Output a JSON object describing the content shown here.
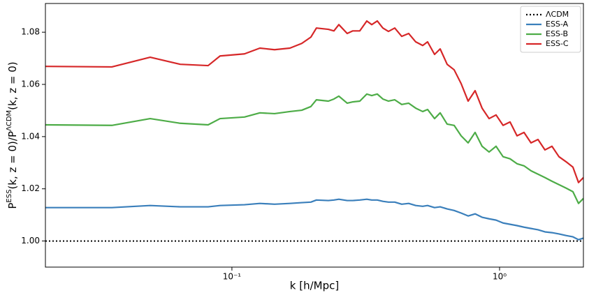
{
  "chart_data": {
    "type": "line",
    "xlabel": "k [h/Mpc]",
    "ylabel": [
      "P",
      "ESS",
      "(k, z = 0)/P",
      "ΛCDM",
      "(k, z = 0)"
    ],
    "xscale": "log",
    "xlim": [
      0.0201,
      2.0573
    ],
    "ylim": [
      0.99,
      1.091
    ],
    "xticks": [
      {
        "value": 0.1,
        "label": "10⁻¹"
      },
      {
        "value": 1,
        "label": "10⁰"
      }
    ],
    "yticks": [
      {
        "value": 1.0,
        "label": "1.00"
      },
      {
        "value": 1.02,
        "label": "1.02"
      },
      {
        "value": 1.04,
        "label": "1.04"
      },
      {
        "value": 1.06,
        "label": "1.06"
      },
      {
        "value": 1.08,
        "label": "1.08"
      }
    ],
    "legend": "upper right",
    "x": [
      0.0201,
      0.0356,
      0.0495,
      0.0641,
      0.0815,
      0.0903,
      0.1114,
      0.1272,
      0.1443,
      0.1647,
      0.1824,
      0.1972,
      0.2069,
      0.2293,
      0.2405,
      0.2509,
      0.2696,
      0.2829,
      0.3005,
      0.3191,
      0.333,
      0.3493,
      0.3664,
      0.3845,
      0.4059,
      0.431,
      0.4576,
      0.4861,
      0.5162,
      0.5383,
      0.5717,
      0.5999,
      0.637,
      0.6765,
      0.7185,
      0.763,
      0.8103,
      0.8604,
      0.9138,
      0.9703,
      1.0306,
      1.0944,
      1.1622,
      1.2341,
      1.3106,
      1.3918,
      1.478,
      1.5696,
      1.6669,
      1.7701,
      1.8797,
      1.9724,
      2.0573
    ],
    "series": [
      {
        "name": "ΛCDM",
        "color": "#000000",
        "dash": "dotted",
        "values": [
          1,
          1,
          1,
          1,
          1,
          1,
          1,
          1,
          1,
          1,
          1,
          1,
          1,
          1,
          1,
          1,
          1,
          1,
          1,
          1,
          1,
          1,
          1,
          1,
          1,
          1,
          1,
          1,
          1,
          1,
          1,
          1,
          1,
          1,
          1,
          1,
          1,
          1,
          1,
          1,
          1,
          1,
          1,
          1,
          1,
          1,
          1,
          1,
          1,
          1,
          1,
          1,
          1
        ]
      },
      {
        "name": "ESS-A",
        "color": "#3a7fbb",
        "values": [
          1.0128,
          1.0128,
          1.0136,
          1.0131,
          1.0131,
          1.0136,
          1.0139,
          1.0144,
          1.0141,
          1.0144,
          1.0147,
          1.0149,
          1.0157,
          1.0155,
          1.0157,
          1.016,
          1.0155,
          1.0155,
          1.0157,
          1.016,
          1.0157,
          1.0157,
          1.0152,
          1.0149,
          1.0149,
          1.0141,
          1.0144,
          1.0136,
          1.0133,
          1.0136,
          1.0128,
          1.0131,
          1.0123,
          1.0117,
          1.0107,
          1.0096,
          1.0104,
          1.0091,
          1.0085,
          1.008,
          1.0069,
          1.0064,
          1.0059,
          1.0053,
          1.0048,
          1.0043,
          1.0035,
          1.0032,
          1.0027,
          1.0021,
          1.0016,
          1.0005,
          1.0011
        ]
      },
      {
        "name": "ESS-B",
        "color": "#4dac47",
        "values": [
          1.0445,
          1.0443,
          1.0469,
          1.0451,
          1.0445,
          1.0469,
          1.0475,
          1.0491,
          1.0488,
          1.0496,
          1.0501,
          1.0515,
          1.0541,
          1.0536,
          1.0544,
          1.0555,
          1.0528,
          1.0533,
          1.0536,
          1.0563,
          1.0557,
          1.0563,
          1.0544,
          1.0536,
          1.0541,
          1.0523,
          1.0528,
          1.0509,
          1.0496,
          1.0504,
          1.0469,
          1.0491,
          1.0448,
          1.0443,
          1.0403,
          1.0376,
          1.0416,
          1.0363,
          1.0341,
          1.0363,
          1.0323,
          1.0315,
          1.0296,
          1.0288,
          1.0269,
          1.0256,
          1.0243,
          1.0229,
          1.0216,
          1.0203,
          1.0189,
          1.0144,
          1.0163
        ]
      },
      {
        "name": "ESS-C",
        "color": "#d62728",
        "values": [
          1.0669,
          1.0667,
          1.0704,
          1.0677,
          1.0672,
          1.0709,
          1.0717,
          1.0739,
          1.0733,
          1.0739,
          1.0757,
          1.0781,
          1.0816,
          1.0811,
          1.0805,
          1.0829,
          1.0795,
          1.0805,
          1.0805,
          1.0843,
          1.0829,
          1.0843,
          1.0816,
          1.0803,
          1.0816,
          1.0784,
          1.0795,
          1.0763,
          1.0749,
          1.0763,
          1.0715,
          1.0736,
          1.0677,
          1.0656,
          1.0603,
          1.0536,
          1.0576,
          1.0509,
          1.0469,
          1.0483,
          1.0443,
          1.0456,
          1.0403,
          1.0416,
          1.0376,
          1.0389,
          1.0349,
          1.0363,
          1.0323,
          1.0304,
          1.0283,
          1.0224,
          1.0243
        ]
      }
    ]
  }
}
